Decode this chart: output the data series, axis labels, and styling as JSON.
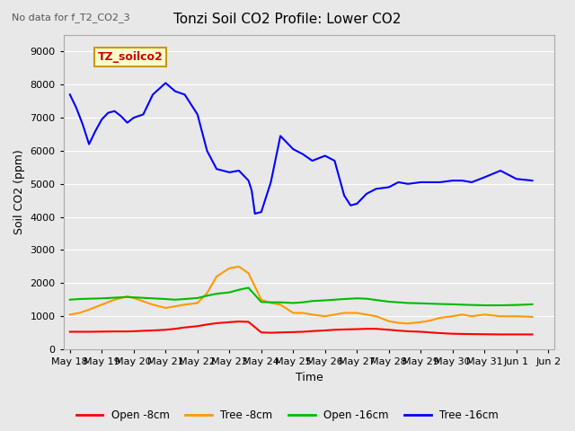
{
  "title": "Tonzi Soil CO2 Profile: Lower CO2",
  "subtitle": "No data for f_T2_CO2_3",
  "ylabel": "Soil CO2 (ppm)",
  "xlabel": "Time",
  "ylim": [
    0,
    9500
  ],
  "yticks": [
    0,
    1000,
    2000,
    3000,
    4000,
    5000,
    6000,
    7000,
    8000,
    9000
  ],
  "legend_label": "TZ_soilco2",
  "legend_bg": "#FFFFCC",
  "legend_border": "#CC9900",
  "bg_color": "#E8E8E8",
  "plot_bg": "#E8E8E8",
  "series": {
    "open_8cm": {
      "label": "Open -8cm",
      "color": "#FF0000",
      "x": [
        18,
        18.3,
        18.6,
        19,
        19.4,
        19.8,
        20,
        20.3,
        20.6,
        21,
        21.3,
        21.6,
        22,
        22.3,
        22.6,
        23,
        23.3,
        23.6,
        24,
        24.3,
        24.6,
        25,
        25.3,
        25.6,
        26,
        26.3,
        26.6,
        27,
        27.3,
        27.6,
        28,
        28.3,
        28.6,
        29,
        29.3,
        29.6,
        30,
        30.3,
        30.6,
        31,
        31.5,
        32,
        32.5
      ],
      "y": [
        530,
        530,
        530,
        535,
        540,
        540,
        545,
        560,
        570,
        590,
        620,
        660,
        700,
        750,
        790,
        820,
        840,
        830,
        510,
        500,
        510,
        520,
        530,
        550,
        570,
        590,
        600,
        610,
        620,
        620,
        590,
        565,
        545,
        530,
        510,
        490,
        470,
        465,
        460,
        455,
        450,
        450,
        450
      ]
    },
    "tree_8cm": {
      "label": "Tree -8cm",
      "color": "#FF9900",
      "x": [
        18,
        18.3,
        18.6,
        19,
        19.4,
        19.8,
        20,
        20.3,
        20.6,
        21,
        21.3,
        21.6,
        22,
        22.3,
        22.6,
        23,
        23.3,
        23.6,
        24,
        24.3,
        24.6,
        25,
        25.3,
        25.6,
        26,
        26.3,
        26.6,
        27,
        27.3,
        27.6,
        28,
        28.3,
        28.6,
        29,
        29.3,
        29.6,
        30,
        30.3,
        30.6,
        31,
        31.5,
        32,
        32.5
      ],
      "y": [
        1050,
        1100,
        1200,
        1350,
        1500,
        1600,
        1550,
        1450,
        1350,
        1250,
        1300,
        1350,
        1400,
        1700,
        2200,
        2450,
        2500,
        2300,
        1500,
        1400,
        1350,
        1100,
        1100,
        1050,
        1000,
        1050,
        1100,
        1100,
        1050,
        1000,
        850,
        800,
        780,
        820,
        870,
        950,
        1000,
        1050,
        1000,
        1050,
        1000,
        1000,
        980
      ]
    },
    "open_16cm": {
      "label": "Open -16cm",
      "color": "#00BB00",
      "x": [
        18,
        18.3,
        18.6,
        19,
        19.4,
        19.8,
        20,
        20.3,
        20.6,
        21,
        21.3,
        21.6,
        22,
        22.3,
        22.6,
        23,
        23.3,
        23.6,
        24,
        24.3,
        24.6,
        25,
        25.3,
        25.6,
        26,
        26.3,
        26.6,
        27,
        27.3,
        27.6,
        28,
        28.3,
        28.6,
        29,
        29.3,
        29.6,
        30,
        30.3,
        30.6,
        31,
        31.5,
        32,
        32.5
      ],
      "y": [
        1500,
        1520,
        1530,
        1540,
        1560,
        1580,
        1570,
        1555,
        1540,
        1520,
        1500,
        1520,
        1550,
        1620,
        1680,
        1720,
        1800,
        1860,
        1430,
        1420,
        1420,
        1400,
        1420,
        1460,
        1480,
        1500,
        1520,
        1540,
        1530,
        1490,
        1440,
        1420,
        1400,
        1390,
        1380,
        1370,
        1360,
        1350,
        1340,
        1330,
        1330,
        1340,
        1360
      ]
    },
    "tree_16cm": {
      "label": "Tree -16cm",
      "color": "#0000FF",
      "x": [
        18,
        18.2,
        18.4,
        18.6,
        18.8,
        19,
        19.2,
        19.4,
        19.6,
        19.8,
        20,
        20.3,
        20.6,
        21,
        21.3,
        21.6,
        22,
        22.3,
        22.6,
        23,
        23.3,
        23.6,
        23.7,
        23.8,
        24,
        24.3,
        24.6,
        25,
        25.3,
        25.6,
        26,
        26.3,
        26.6,
        26.8,
        27,
        27.3,
        27.6,
        28,
        28.3,
        28.6,
        29,
        29.3,
        29.6,
        30,
        30.3,
        30.6,
        31,
        31.5,
        32,
        32.5
      ],
      "y": [
        7700,
        7300,
        6800,
        6200,
        6600,
        6950,
        7150,
        7200,
        7050,
        6850,
        7000,
        7100,
        7700,
        8050,
        7800,
        7700,
        7100,
        6000,
        5450,
        5350,
        5400,
        5100,
        4800,
        4100,
        4150,
        5050,
        6450,
        6050,
        5900,
        5700,
        5850,
        5700,
        4650,
        4350,
        4400,
        4700,
        4850,
        4900,
        5050,
        5000,
        5050,
        5050,
        5050,
        5100,
        5100,
        5050,
        5200,
        5400,
        5150,
        5100
      ]
    }
  },
  "xticklabels": [
    "May 18",
    "May 19",
    "May 20",
    "May 21",
    "May 22",
    "May 23",
    "May 24",
    "May 25",
    "May 26",
    "May 27",
    "May 28",
    "May 29",
    "May 30",
    "May 31",
    "Jun 1",
    "Jun 2"
  ],
  "xtick_positions": [
    18,
    19,
    20,
    21,
    22,
    23,
    24,
    25,
    26,
    27,
    28,
    29,
    30,
    31,
    32,
    33
  ]
}
